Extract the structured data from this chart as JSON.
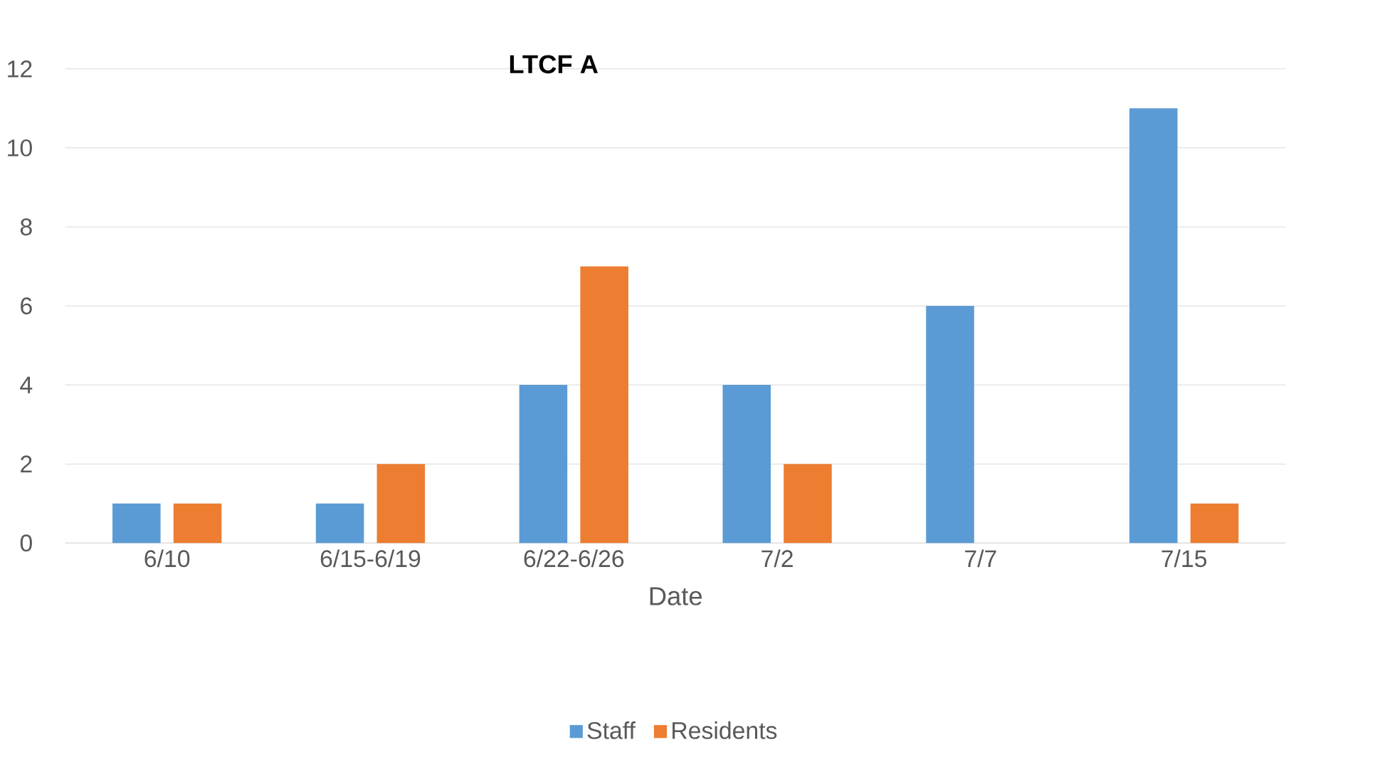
{
  "chart_data": {
    "type": "bar",
    "title": "LTCF A",
    "xlabel": "Date",
    "categories": [
      "6/10",
      "6/15-6/19",
      "6/22-6/26",
      "7/2",
      "7/7",
      "7/15"
    ],
    "series": [
      {
        "name": "Staff",
        "color": "#5b9bd5",
        "values": [
          1,
          1,
          4,
          4,
          6,
          11
        ]
      },
      {
        "name": "Residents",
        "color": "#ed7d31",
        "values": [
          1,
          2,
          7,
          2,
          0,
          1
        ]
      }
    ],
    "ylim": [
      0,
      12
    ],
    "yticks": [
      0,
      2,
      4,
      6,
      8,
      10,
      12
    ],
    "grid": "y",
    "legend": "bottom"
  }
}
